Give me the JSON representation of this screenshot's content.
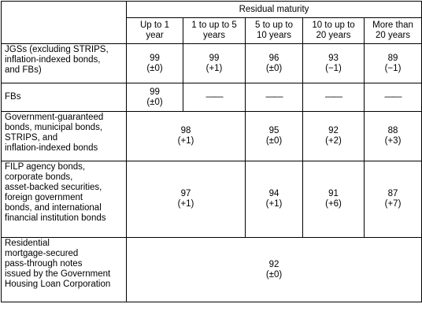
{
  "table": {
    "group_header": "Residual maturity",
    "columns": [
      "Up to 1\nyear",
      "1 to up to 5\nyears",
      "5 to up to\n10 years",
      "10 to up to\n20 years",
      "More than\n20 years"
    ],
    "rows": [
      {
        "label": "JGSs (excluding STRIPS,\ninflation-indexed bonds,\nand FBs)",
        "cells": [
          "99\n(±0)",
          "99\n(+1)",
          "96\n(±0)",
          "93\n(−1)",
          "89\n(−1)"
        ]
      },
      {
        "label": "FBs",
        "cells": [
          "99\n(±0)",
          "——",
          "——",
          "——",
          "——"
        ]
      },
      {
        "label": "Government-guaranteed\nbonds, municipal bonds,\nSTRIPS, and\ninflation-indexed bonds",
        "cells": [
          "98\n(+1)",
          "95\n(±0)",
          "92\n(+2)",
          "88\n(+3)"
        ]
      },
      {
        "label": "FILP agency bonds,\ncorporate bonds,\nasset-backed securities,\nforeign government\nbonds, and international\nfinancial institution bonds",
        "cells": [
          "97\n(+1)",
          "94\n(+1)",
          "91\n(+6)",
          "87\n(+7)"
        ]
      },
      {
        "label": "Residential\nmortgage-secured\npass-through notes\nissued by the Government\nHousing Loan Corporation",
        "cells": [
          "92\n(±0)"
        ]
      }
    ]
  }
}
